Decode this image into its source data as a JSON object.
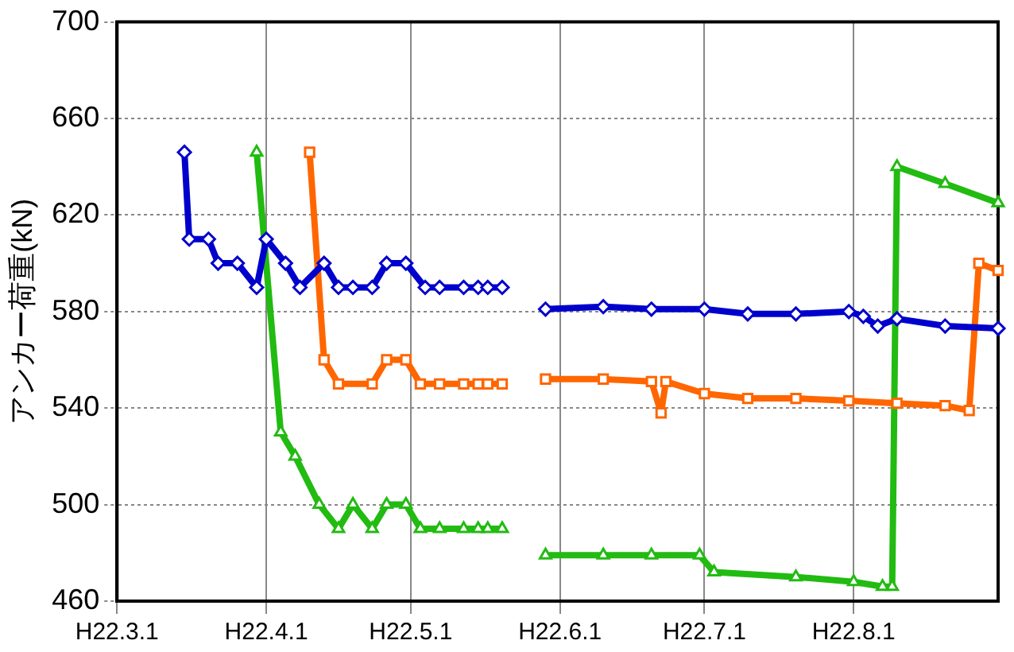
{
  "chart_data": {
    "type": "line",
    "ylabel": "アンカー荷重(kN)",
    "grid": true,
    "legend": false,
    "line_style": "solid",
    "xlim": [
      "--03-01",
      "--08-31"
    ],
    "xticks": [
      {
        "value": "--03-01",
        "label": "H22.3.1"
      },
      {
        "value": "--04-01",
        "label": "H22.4.1"
      },
      {
        "value": "--05-01",
        "label": "H22.5.1"
      },
      {
        "value": "--06-01",
        "label": "H22.6.1"
      },
      {
        "value": "--07-01",
        "label": "H22.7.1"
      },
      {
        "value": "--08-01",
        "label": "H22.8.1"
      }
    ],
    "ylim": [
      460,
      700
    ],
    "yticks": [
      460,
      500,
      540,
      580,
      620,
      660,
      700
    ],
    "series": [
      {
        "color": "#0000cc",
        "marker": "diamond",
        "x": [
          "--03-15",
          "--03-16",
          "--03-20",
          "--03-22",
          "--03-26",
          "--03-30",
          "--04-01",
          "--04-05",
          "--04-08",
          "--04-13",
          "--04-16",
          "--04-19",
          "--04-23",
          "--04-26",
          "--04-30",
          "--05-04",
          "--05-07",
          "--05-12",
          "--05-15",
          "--05-17",
          "--05-20",
          "--05-25",
          "--05-29",
          "--06-10",
          "--06-20",
          "--07-01",
          "--07-10",
          "--07-20",
          "--07-31",
          "--08-03",
          "--08-06",
          "--08-10",
          "--08-20",
          "--08-31"
        ],
        "values": [
          646,
          610,
          610,
          600,
          600,
          590,
          610,
          600,
          590,
          600,
          590,
          590,
          590,
          600,
          600,
          590,
          590,
          590,
          590,
          590,
          590,
          null,
          581,
          582,
          581,
          581,
          579,
          579,
          580,
          578,
          574,
          577,
          574,
          573
        ]
      },
      {
        "color": "#ff6600",
        "marker": "square",
        "x": [
          "--04-10",
          "--04-13",
          "--04-16",
          "--04-23",
          "--04-26",
          "--04-30",
          "--05-03",
          "--05-07",
          "--05-12",
          "--05-15",
          "--05-17",
          "--05-20",
          "--05-25",
          "--05-29",
          "--06-10",
          "--06-20",
          "--06-22",
          "--06-23",
          "--07-01",
          "--07-10",
          "--07-20",
          "--07-31",
          "--08-10",
          "--08-20",
          "--08-25",
          "--08-27",
          "--08-31"
        ],
        "values": [
          646,
          560,
          550,
          550,
          560,
          560,
          550,
          550,
          550,
          550,
          550,
          550,
          null,
          552,
          552,
          551,
          538,
          551,
          546,
          544,
          544,
          543,
          542,
          541,
          539,
          600,
          597
        ]
      },
      {
        "color": "#22bb11",
        "marker": "triangle",
        "x": [
          "--03-30",
          "--04-04",
          "--04-07",
          "--04-12",
          "--04-16",
          "--04-19",
          "--04-23",
          "--04-26",
          "--04-30",
          "--05-03",
          "--05-07",
          "--05-12",
          "--05-15",
          "--05-17",
          "--05-20",
          "--05-25",
          "--05-29",
          "--06-10",
          "--06-20",
          "--06-30",
          "--07-03",
          "--07-20",
          "--08-01",
          "--08-07",
          "--08-09",
          "--08-10",
          "--08-20",
          "--08-31"
        ],
        "values": [
          646,
          530,
          520,
          500,
          490,
          500,
          490,
          500,
          500,
          490,
          490,
          490,
          490,
          490,
          490,
          null,
          479,
          479,
          479,
          479,
          472,
          470,
          468,
          466,
          466,
          640,
          633,
          625
        ]
      }
    ]
  }
}
